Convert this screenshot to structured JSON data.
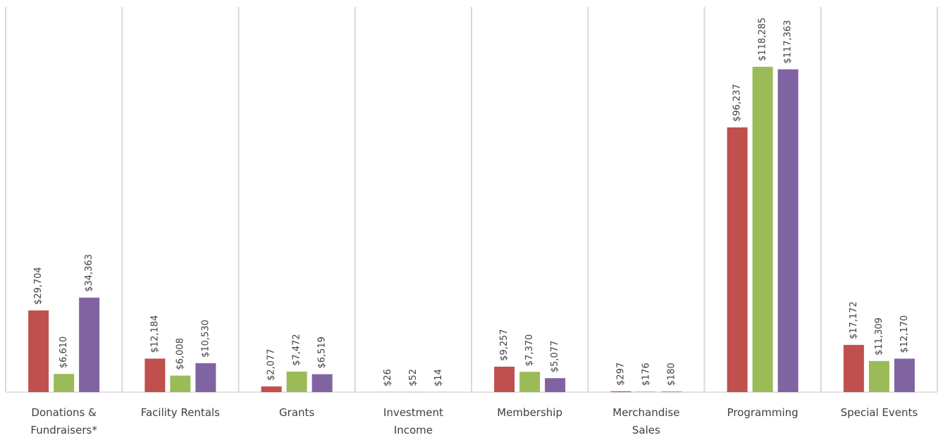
{
  "chart_data": {
    "type": "bar",
    "categories": [
      [
        "Donations &",
        "Fundraisers*"
      ],
      [
        "Facility Rentals"
      ],
      [
        "Grants"
      ],
      [
        "Investment",
        "Income"
      ],
      [
        "Membership"
      ],
      [
        "Merchandise",
        "Sales"
      ],
      [
        "Programming"
      ],
      [
        "Special Events"
      ]
    ],
    "series": [
      {
        "color": "#c0504d",
        "values": [
          29704,
          12184,
          2077,
          26,
          9257,
          297,
          96237,
          17172
        ],
        "value_labels": [
          "$29,704",
          "$12,184",
          "$2,077",
          "$26",
          "$9,257",
          "$297",
          "$96,237",
          "$17,172"
        ]
      },
      {
        "color": "#9bbb59",
        "values": [
          6610,
          6008,
          7472,
          52,
          7370,
          176,
          118285,
          11309
        ],
        "value_labels": [
          "$6,610",
          "$6,008",
          "$7,472",
          "$52",
          "$7,370",
          "$176",
          "$118,285",
          "$11,309"
        ]
      },
      {
        "color": "#8064a2",
        "values": [
          34363,
          10530,
          6519,
          14,
          5077,
          180,
          117363,
          12170
        ],
        "value_labels": [
          "$34,363",
          "$10,530",
          "$6,519",
          "$14",
          "$5,077",
          "$180",
          "$117,363",
          "$12,170"
        ]
      }
    ],
    "ylim": [
      0,
      140000
    ]
  }
}
